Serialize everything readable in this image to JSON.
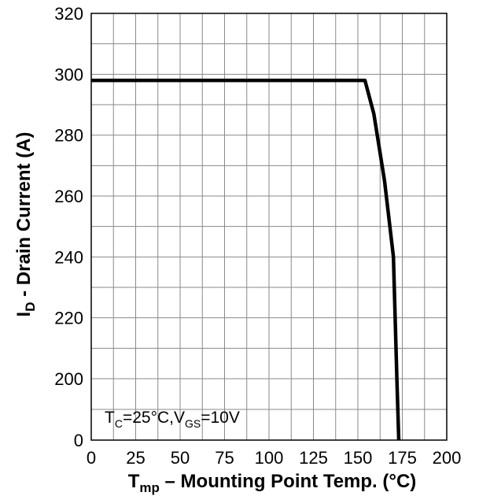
{
  "chart_data": {
    "type": "line",
    "xlabel": {
      "main": "T",
      "sub": "mp",
      "rest": " – Mounting Point Temp.  (°C)"
    },
    "ylabel": {
      "main": "I",
      "sub": "D",
      "rest": " - Drain Current (A)"
    },
    "xlim": [
      0,
      200
    ],
    "x_ticks": [
      0,
      25,
      50,
      75,
      100,
      125,
      150,
      175,
      200
    ],
    "y_ticks": [
      0,
      200,
      220,
      240,
      260,
      280,
      300,
      320
    ],
    "y_tick_labels": [
      "0",
      "200",
      "220",
      "240",
      "260",
      "280",
      "300",
      "320"
    ],
    "grid": true,
    "annotation": {
      "t": "T",
      "t_sub": "C",
      "t_val": "=25°C,",
      "v": "V",
      "v_sub": "GS",
      "v_val": "=10V"
    },
    "series": [
      {
        "x": [
          0,
          154,
          159,
          165,
          168,
          170,
          172,
          173
        ],
        "y": [
          298,
          298,
          287,
          265,
          250,
          240,
          190,
          0
        ]
      }
    ],
    "line_color": "#000000"
  }
}
